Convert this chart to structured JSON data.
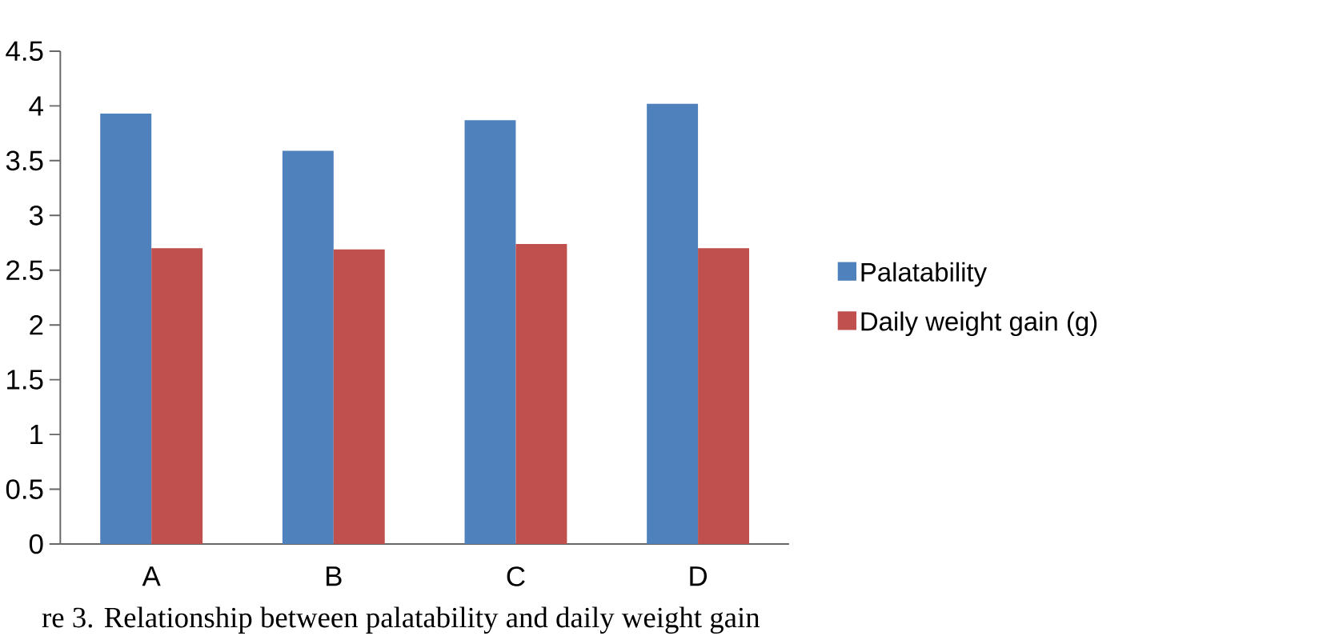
{
  "chart_data": {
    "type": "bar",
    "categories": [
      "A",
      "B",
      "C",
      "D"
    ],
    "series": [
      {
        "name": "Palatability",
        "color": "#4f81bd",
        "values": [
          3.93,
          3.59,
          3.87,
          4.02
        ]
      },
      {
        "name": "Daily weight gain (g)",
        "color": "#c0504d",
        "values": [
          2.7,
          2.69,
          2.74,
          2.7
        ]
      }
    ],
    "ylim": [
      0,
      4.5
    ],
    "yticks": [
      0,
      0.5,
      1,
      1.5,
      2,
      2.5,
      3,
      3.5,
      4,
      4.5
    ],
    "legend": "right",
    "annotations": [
      "re 3. Relationship between palatability and daily weight gain"
    ]
  }
}
